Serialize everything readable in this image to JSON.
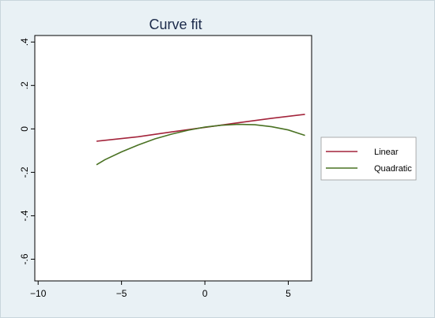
{
  "chart_data": {
    "type": "line",
    "title": "Curve fit",
    "xlabel": "",
    "ylabel": "",
    "xlim": [
      -10.2,
      6.4
    ],
    "ylim": [
      -0.7,
      0.43
    ],
    "xticks": [
      -10,
      -5,
      0,
      5
    ],
    "yticks": [
      -0.6,
      -0.4,
      -0.2,
      0,
      0.2,
      0.4
    ],
    "xtick_labels": [
      "−10",
      "−5",
      "0",
      "5"
    ],
    "ytick_labels": [
      "-.6",
      "-.4",
      "-.2",
      "0",
      ".2",
      ".4"
    ],
    "grid": false,
    "legend_position": "right",
    "series": [
      {
        "name": "Linear",
        "color": "#a3243b",
        "x": [
          -6.5,
          -4,
          -2,
          0,
          2,
          4,
          6
        ],
        "y": [
          -0.057,
          -0.036,
          -0.014,
          0.007,
          0.028,
          0.049,
          0.067
        ]
      },
      {
        "name": "Quadratic",
        "color": "#4a7223",
        "x": [
          -6.5,
          -6,
          -5,
          -4,
          -3,
          -2,
          -1,
          0,
          1,
          2,
          3,
          4,
          5,
          6
        ],
        "y": [
          -0.165,
          -0.142,
          -0.106,
          -0.074,
          -0.046,
          -0.024,
          -0.006,
          0.008,
          0.017,
          0.021,
          0.019,
          0.01,
          -0.005,
          -0.03
        ]
      }
    ]
  }
}
